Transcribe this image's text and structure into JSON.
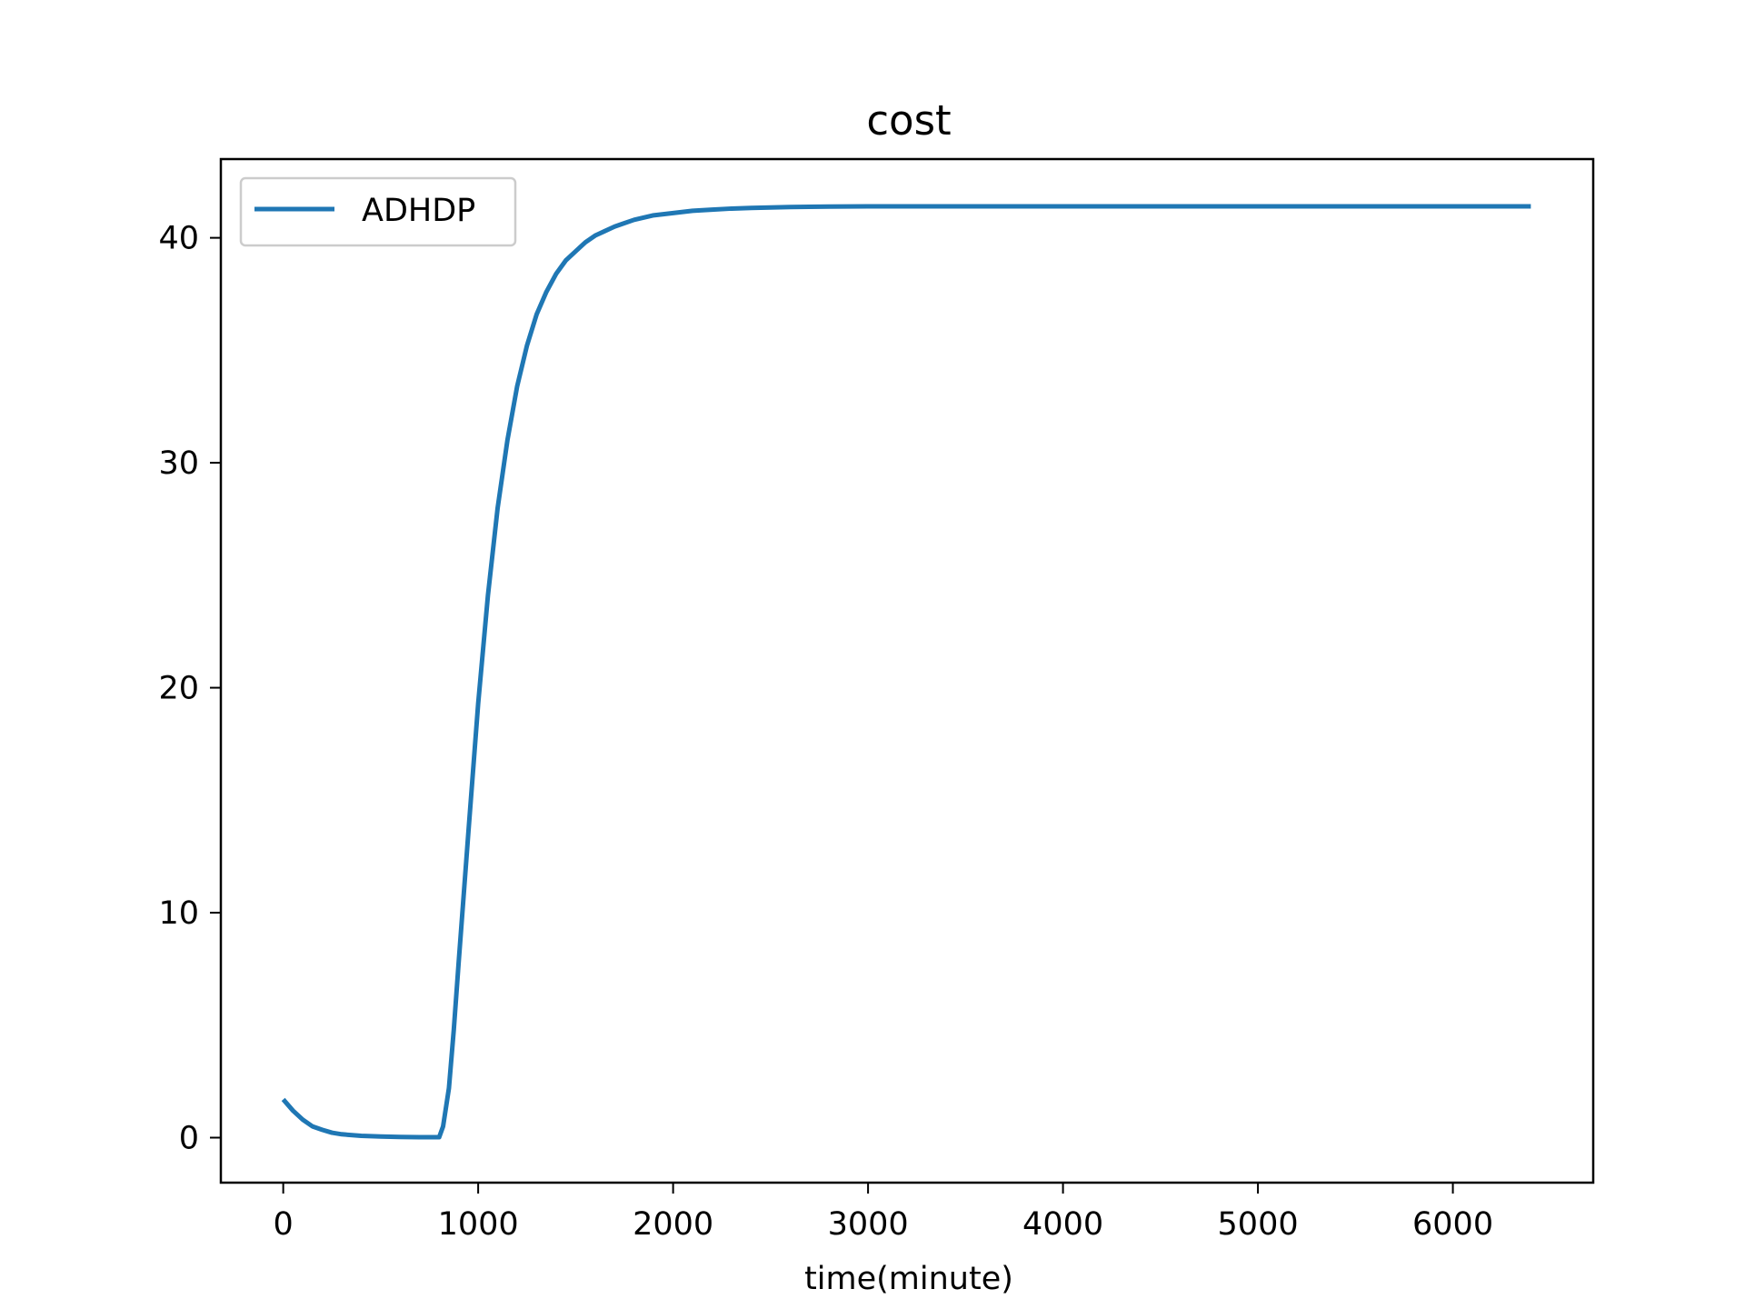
{
  "chart_data": {
    "type": "line",
    "title": "cost",
    "xlabel": "time(minute)",
    "ylabel": "",
    "xlim": [
      -320,
      6720
    ],
    "ylim": [
      -2,
      43.5
    ],
    "grid": false,
    "legend": "upper-left",
    "x_ticks": [
      0,
      1000,
      2000,
      3000,
      4000,
      5000,
      6000
    ],
    "x_tick_labels": [
      "0",
      "1000",
      "2000",
      "3000",
      "4000",
      "5000",
      "6000"
    ],
    "y_ticks": [
      0,
      10,
      20,
      30,
      40
    ],
    "y_tick_labels": [
      "0",
      "10",
      "20",
      "30",
      "40"
    ],
    "series": [
      {
        "name": "ADHDP",
        "color": "#1f77b4",
        "x": [
          0,
          50,
          100,
          150,
          200,
          250,
          300,
          400,
          500,
          600,
          700,
          800,
          820,
          850,
          875,
          900,
          925,
          950,
          1000,
          1050,
          1100,
          1150,
          1200,
          1250,
          1300,
          1350,
          1400,
          1450,
          1500,
          1550,
          1600,
          1650,
          1700,
          1750,
          1800,
          1900,
          2000,
          2100,
          2200,
          2300,
          2400,
          2500,
          2600,
          2800,
          3000,
          3500,
          4000,
          5000,
          6000,
          6400
        ],
        "y": [
          1.7,
          1.2,
          0.8,
          0.5,
          0.35,
          0.22,
          0.15,
          0.08,
          0.05,
          0.03,
          0.02,
          0.02,
          0.5,
          2.2,
          4.8,
          7.8,
          10.7,
          13.6,
          19.3,
          24.1,
          28.0,
          31.0,
          33.4,
          35.2,
          36.6,
          37.6,
          38.4,
          39.0,
          39.4,
          39.8,
          40.1,
          40.3,
          40.5,
          40.65,
          40.8,
          41.0,
          41.1,
          41.2,
          41.25,
          41.3,
          41.33,
          41.35,
          41.37,
          41.39,
          41.4,
          41.4,
          41.4,
          41.4,
          41.4,
          41.4
        ]
      }
    ]
  }
}
